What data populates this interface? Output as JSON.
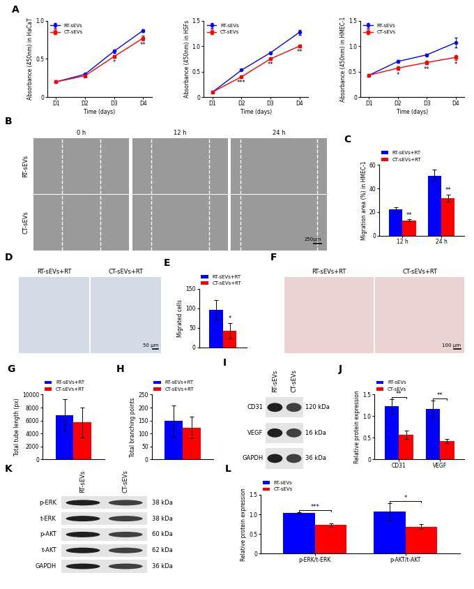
{
  "chart_data": [
    {
      "type": "line",
      "panel": "A",
      "ylabel": "Absorbance (450nm) in HaCaT",
      "xlabel": "Time (days)",
      "categories": [
        "D1",
        "D2",
        "D3",
        "D4"
      ],
      "series": [
        {
          "name": "RT-sEVs",
          "color": "#0000ff",
          "marker": "o",
          "values": [
            0.2,
            0.3,
            0.6,
            0.87
          ],
          "errors": [
            0.01,
            0.01,
            0.02,
            0.02
          ]
        },
        {
          "name": "CT-sEVs",
          "color": "#ff0000",
          "marker": "s",
          "values": [
            0.2,
            0.28,
            0.53,
            0.77
          ],
          "errors": [
            0.01,
            0.01,
            0.02,
            0.03
          ]
        }
      ],
      "ylim": [
        0,
        1
      ],
      "yticks": [
        0,
        0.5,
        {
          "value": 1,
          "label": "1.0"
        }
      ],
      "legend": "upper left",
      "annotations": [
        {
          "category": "D3",
          "series": "CT-sEVs",
          "text": "*"
        },
        {
          "category": "D4",
          "series": "CT-sEVs",
          "text": "**"
        }
      ]
    },
    {
      "type": "line",
      "ylabel": "Absorbance (450nm) in HSFs",
      "xlabel": "Time (days)",
      "categories": [
        "D1",
        "D2",
        "D3",
        "D4"
      ],
      "series": [
        {
          "name": "RT-sEVs",
          "color": "#0000ff",
          "marker": "o",
          "values": [
            0.1,
            0.53,
            0.87,
            1.27
          ],
          "errors": [
            0.01,
            0.01,
            0.02,
            0.05
          ]
        },
        {
          "name": "CT-sEVs",
          "color": "#ff0000",
          "marker": "s",
          "values": [
            0.1,
            0.4,
            0.75,
            1.0
          ],
          "errors": [
            0.01,
            0.02,
            0.02,
            0.03
          ]
        }
      ],
      "ylim": [
        0,
        1.5
      ],
      "yticks": [
        0,
        0.5,
        {
          "value": 1,
          "label": "1.0"
        },
        1.5
      ],
      "legend": "upper left",
      "annotations": [
        {
          "category": "D2",
          "series": "CT-sEVs",
          "text": "***"
        },
        {
          "category": "D3",
          "series": "CT-sEVs",
          "text": "**"
        },
        {
          "category": "D4",
          "series": "CT-sEVs",
          "text": "**"
        }
      ]
    },
    {
      "type": "line",
      "ylabel": "Absorbance (450nm) in HMEC-1",
      "xlabel": "Time (days)",
      "categories": [
        "D1",
        "D2",
        "D3",
        "D4"
      ],
      "series": [
        {
          "name": "RT-sEVs",
          "color": "#0000ff",
          "marker": "o",
          "values": [
            0.43,
            0.7,
            0.83,
            1.07
          ],
          "errors": [
            0.01,
            0.03,
            0.02,
            0.1
          ]
        },
        {
          "name": "CT-sEVs",
          "color": "#ff0000",
          "marker": "s",
          "values": [
            0.43,
            0.57,
            0.68,
            0.78
          ],
          "errors": [
            0.01,
            0.04,
            0.04,
            0.05
          ]
        }
      ],
      "ylim": [
        0,
        1.5
      ],
      "yticks": [
        0,
        0.5,
        {
          "value": 1,
          "label": "1.0"
        },
        1.5
      ],
      "legend": "upper left",
      "annotations": [
        {
          "category": "D2",
          "series": "CT-sEVs",
          "text": "*"
        },
        {
          "category": "D3",
          "series": "CT-sEVs",
          "text": "**"
        },
        {
          "category": "D4",
          "series": "CT-sEVs",
          "text": "*"
        }
      ]
    },
    {
      "type": "bar",
      "panel": "C",
      "ylabel": "Migration area (%) in HMEC-1",
      "categories": [
        "12 h",
        "24 h"
      ],
      "series": [
        {
          "name": "RT-sEVs+RT",
          "color": "#0000ff",
          "values": [
            22,
            51
          ],
          "errors": [
            2,
            5
          ]
        },
        {
          "name": "CT-sEVs+RT",
          "color": "#ff0000",
          "values": [
            13,
            32
          ],
          "errors": [
            1,
            3
          ]
        }
      ],
      "ylim": [
        0,
        60
      ],
      "yticks": [
        0,
        20,
        40,
        60
      ],
      "legend": "lower left",
      "annotations": [
        {
          "category": "12 h",
          "series": "CT-sEVs+RT",
          "text": "**"
        },
        {
          "category": "24 h",
          "series": "CT-sEVs+RT",
          "text": "**"
        }
      ]
    },
    {
      "type": "bar",
      "panel": "E",
      "ylabel": "Migrated cells",
      "categories": [
        null
      ],
      "series": [
        {
          "name": "RT-sEVs+RT",
          "color": "#0000ff",
          "values": [
            96
          ],
          "errors": [
            25
          ]
        },
        {
          "name": "CT-sEVs+RT",
          "color": "#ff0000",
          "values": [
            43
          ],
          "errors": [
            20
          ]
        }
      ],
      "ylim": [
        0,
        150
      ],
      "yticks": [
        0,
        50,
        100,
        150
      ],
      "legend": "lower left",
      "annotations": [
        {
          "category": null,
          "series": "CT-sEVs+RT",
          "text": "*"
        }
      ]
    },
    {
      "type": "bar",
      "panel": "G",
      "ylabel": "Total tube length (px)",
      "categories": [
        null
      ],
      "series": [
        {
          "name": "RT-sEVs+RT",
          "color": "#0000ff",
          "values": [
            6800
          ],
          "errors": [
            2500
          ]
        },
        {
          "name": "CT-sEVs+RT",
          "color": "#ff0000",
          "values": [
            5700
          ],
          "errors": [
            2300
          ]
        }
      ],
      "ylim": [
        0,
        10000
      ],
      "yticks": [
        0,
        2000,
        4000,
        6000,
        8000,
        10000
      ],
      "legend": "lower left"
    },
    {
      "type": "bar",
      "panel": "H",
      "ylabel": "Total branching points",
      "categories": [
        null
      ],
      "series": [
        {
          "name": "RT-sEVs+RT",
          "color": "#0000ff",
          "values": [
            148
          ],
          "errors": [
            60
          ]
        },
        {
          "name": "CT-sEVs+RT",
          "color": "#ff0000",
          "values": [
            123
          ],
          "errors": [
            42
          ]
        }
      ],
      "ylim": [
        0,
        250
      ],
      "yticks": [
        0,
        50,
        100,
        150,
        200,
        250
      ],
      "legend": "lower left"
    },
    {
      "type": "bar",
      "panel": "J",
      "ylabel": "Relative protein expression",
      "categories": [
        "CD31",
        "VEGF"
      ],
      "series": [
        {
          "name": "RT-sEVs",
          "color": "#0000ff",
          "values": [
            1.23,
            1.17
          ],
          "errors": [
            0.17,
            0.2
          ]
        },
        {
          "name": "CT-sEVs",
          "color": "#ff0000",
          "values": [
            0.57,
            0.42
          ],
          "errors": [
            0.1,
            0.05
          ]
        }
      ],
      "ylim": [
        0,
        1.5
      ],
      "yticks": [
        0,
        0.5,
        {
          "value": 1,
          "label": "1.0"
        },
        1.5
      ],
      "legend": "lower left",
      "annotations": [
        {
          "category": "CD31",
          "text": "**"
        },
        {
          "category": "VEGF",
          "text": "**"
        }
      ]
    },
    {
      "type": "bar",
      "panel": "L",
      "ylabel": "Relative protein expression",
      "categories": [
        "p-ERK/t-ERK",
        "p-AKT/t-AKT"
      ],
      "series": [
        {
          "name": "RT-sEVs",
          "color": "#0000ff",
          "values": [
            1.03,
            1.07
          ],
          "errors": [
            0.03,
            0.22
          ]
        },
        {
          "name": "CT-sEVs",
          "color": "#ff0000",
          "values": [
            0.73,
            0.69
          ],
          "errors": [
            0.04,
            0.07
          ]
        }
      ],
      "ylim": [
        0,
        1.5
      ],
      "yticks": [
        0,
        0.5,
        {
          "value": 1,
          "label": "1.0"
        },
        1.5
      ],
      "legend": "lower left",
      "annotations": [
        {
          "category": "p-ERK/t-ERK",
          "text": "***"
        },
        {
          "category": "p-AKT/t-AKT",
          "text": "*"
        }
      ]
    }
  ],
  "images": [
    {
      "panel": "B",
      "rows": [
        "RT-sEVs",
        "CT-sEVs"
      ],
      "columns": [
        "0 h",
        "12 h",
        "24 h"
      ],
      "scale_bar": "250μm"
    },
    {
      "panel": "D",
      "columns": [
        "RT-sEVs+RT",
        "CT-sEVs+RT"
      ],
      "scale_bar": "50 μm"
    },
    {
      "panel": "F",
      "columns": [
        "RT-sEVs+RT",
        "CT-sEVs+RT"
      ],
      "scale_bar": "100 μm"
    }
  ],
  "blots": [
    {
      "panel": "I",
      "lanes": [
        "RT-sEVs",
        "CT-sEVs"
      ],
      "bands": [
        {
          "label": "CD31",
          "size": "120 kDa"
        },
        {
          "label": "VEGF",
          "size": "16 kDa"
        },
        {
          "label": "GAPDH",
          "size": "36 kDa"
        }
      ]
    },
    {
      "panel": "K",
      "lanes": [
        "RT-sEVs",
        "CT-sEVs"
      ],
      "bands": [
        {
          "label": "p-ERK",
          "size": "38 kDa"
        },
        {
          "label": "t-ERK",
          "size": "38 kDa"
        },
        {
          "label": "p-AKT",
          "size": "60 kDa"
        },
        {
          "label": "t-AKT",
          "size": "62 kDa"
        },
        {
          "label": "GAPDH",
          "size": "36 kDa"
        }
      ]
    }
  ]
}
